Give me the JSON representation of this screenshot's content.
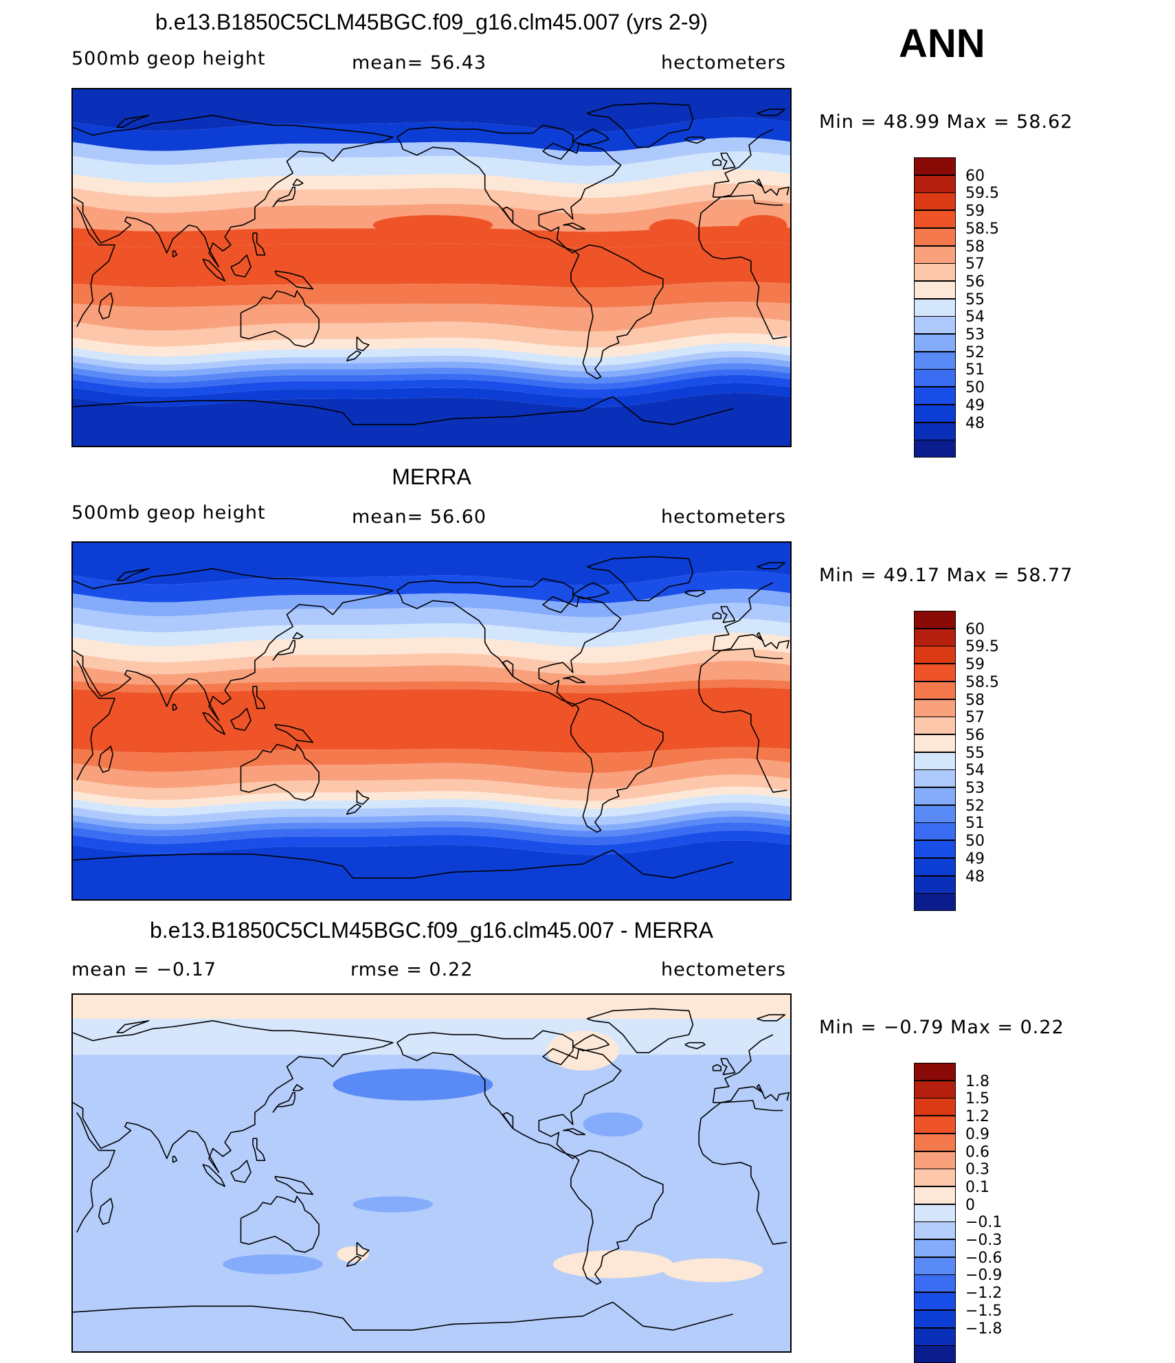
{
  "season": "ANN",
  "panels": [
    {
      "id": "model",
      "title": "b.e13.B1850C5CLM45BGC.f09_g16.clm45.007 (yrs 2-9)",
      "left_label": "500mb geop height",
      "center_label": "mean=   56.43",
      "right_label": "hectometers",
      "minmax": "Min =   48.99  Max =   58.62"
    },
    {
      "id": "obs",
      "title": "MERRA",
      "left_label": "500mb geop height",
      "center_label": "mean=   56.60",
      "right_label": "hectometers",
      "minmax": "Min =   49.17  Max =   58.77"
    },
    {
      "id": "diff",
      "title": "b.e13.B1850C5CLM45BGC.f09_g16.clm45.007 - MERRA",
      "left_label": "mean =   −0.17",
      "center_label": "rmse =    0.22",
      "right_label": "hectometers",
      "minmax": "Min =   −0.79  Max =    0.22"
    }
  ],
  "chart_data": [
    {
      "type": "heatmap",
      "title": "b.e13.B1850C5CLM45BGC.f09_g16.clm45.007 (yrs 2-9)",
      "variable": "500mb geop height",
      "units": "hectometers",
      "mean": 56.43,
      "min": 48.99,
      "max": 58.62,
      "levels": [
        48,
        49,
        50,
        51,
        52,
        53,
        54,
        55,
        56,
        57,
        58,
        58.5,
        59,
        59.5,
        60
      ],
      "level_labels": [
        "60",
        "59.5",
        "59",
        "58.5",
        "58",
        "57",
        "56",
        "55",
        "54",
        "53",
        "52",
        "51",
        "50",
        "49",
        "48"
      ],
      "colors": [
        "#0b1c8c",
        "#0a2fb8",
        "#0c3ed6",
        "#1a4ee8",
        "#3a6df2",
        "#5a8af6",
        "#85acfb",
        "#aecafd",
        "#d3e6fb",
        "#fde7d6",
        "#fdc7ab",
        "#f9a17d",
        "#f47a4e",
        "#ee5428",
        "#dc3a14",
        "#b51f0d",
        "#8a0a08"
      ]
    },
    {
      "type": "heatmap",
      "title": "MERRA",
      "variable": "500mb geop height",
      "units": "hectometers",
      "mean": 56.6,
      "min": 49.17,
      "max": 58.77,
      "levels": [
        48,
        49,
        50,
        51,
        52,
        53,
        54,
        55,
        56,
        57,
        58,
        58.5,
        59,
        59.5,
        60
      ],
      "level_labels": [
        "60",
        "59.5",
        "59",
        "58.5",
        "58",
        "57",
        "56",
        "55",
        "54",
        "53",
        "52",
        "51",
        "50",
        "49",
        "48"
      ],
      "colors": [
        "#0b1c8c",
        "#0a2fb8",
        "#0c3ed6",
        "#1a4ee8",
        "#3a6df2",
        "#5a8af6",
        "#85acfb",
        "#aecafd",
        "#d3e6fb",
        "#fde7d6",
        "#fdc7ab",
        "#f9a17d",
        "#f47a4e",
        "#ee5428",
        "#dc3a14",
        "#b51f0d",
        "#8a0a08"
      ]
    },
    {
      "type": "heatmap",
      "title": "b.e13.B1850C5CLM45BGC.f09_g16.clm45.007 - MERRA",
      "units": "hectometers",
      "mean": -0.17,
      "rmse": 0.22,
      "min": -0.79,
      "max": 0.22,
      "levels": [
        -1.8,
        -1.5,
        -1.2,
        -0.9,
        -0.6,
        -0.3,
        -0.1,
        0,
        0.1,
        0.3,
        0.6,
        0.9,
        1.2,
        1.5,
        1.8
      ],
      "level_labels": [
        "1.8",
        "1.5",
        "1.2",
        "0.9",
        "0.6",
        "0.3",
        "0.1",
        "0",
        "−0.1",
        "−0.3",
        "−0.6",
        "−0.9",
        "−1.2",
        "−1.5",
        "−1.8"
      ],
      "colors": [
        "#0b1c8c",
        "#0a2fb8",
        "#0c3ed6",
        "#1a4ee8",
        "#3a6df2",
        "#5a8af6",
        "#85acfb",
        "#b4cdfb",
        "#d6e6fb",
        "#fde7d6",
        "#fdc7ab",
        "#f9a17d",
        "#f47a4e",
        "#ee5428",
        "#dc3a14",
        "#b51f0d",
        "#8a0a08"
      ]
    }
  ]
}
